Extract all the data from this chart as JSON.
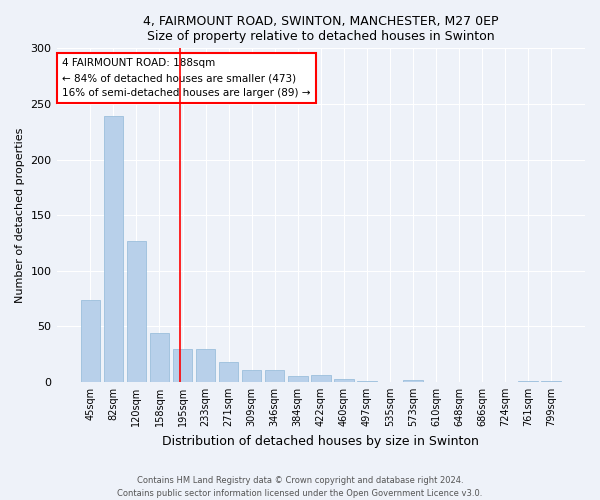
{
  "title1": "4, FAIRMOUNT ROAD, SWINTON, MANCHESTER, M27 0EP",
  "title2": "Size of property relative to detached houses in Swinton",
  "xlabel": "Distribution of detached houses by size in Swinton",
  "ylabel": "Number of detached properties",
  "categories": [
    "45sqm",
    "82sqm",
    "120sqm",
    "158sqm",
    "195sqm",
    "233sqm",
    "271sqm",
    "309sqm",
    "346sqm",
    "384sqm",
    "422sqm",
    "460sqm",
    "497sqm",
    "535sqm",
    "573sqm",
    "610sqm",
    "648sqm",
    "686sqm",
    "724sqm",
    "761sqm",
    "799sqm"
  ],
  "values": [
    74,
    239,
    127,
    44,
    30,
    30,
    18,
    11,
    11,
    5,
    6,
    3,
    1,
    0,
    2,
    0,
    0,
    0,
    0,
    1,
    1
  ],
  "bar_color": "#b8d0ea",
  "bar_edge_color": "#90b8d8",
  "annotation_title": "4 FAIRMOUNT ROAD: 188sqm",
  "annotation_line1": "← 84% of detached houses are smaller (473)",
  "annotation_line2": "16% of semi-detached houses are larger (89) →",
  "ylim": [
    0,
    300
  ],
  "yticks": [
    0,
    50,
    100,
    150,
    200,
    250,
    300
  ],
  "footer1": "Contains HM Land Registry data © Crown copyright and database right 2024.",
  "footer2": "Contains public sector information licensed under the Open Government Licence v3.0.",
  "bg_color": "#eef2f9",
  "plot_bg_color": "#eef2f9",
  "red_line_x": 3.88
}
